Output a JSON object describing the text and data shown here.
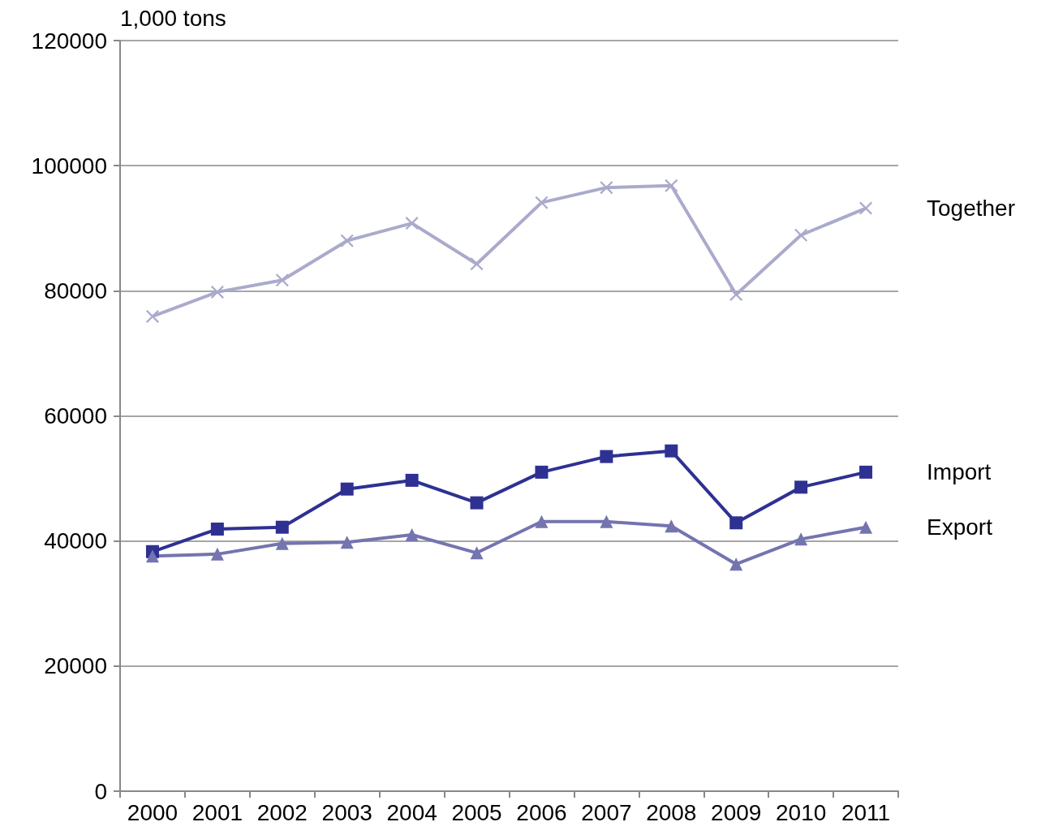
{
  "chart_data": {
    "type": "line",
    "ylabel": "1,000 tons",
    "categories": [
      "2000",
      "2001",
      "2002",
      "2003",
      "2004",
      "2005",
      "2006",
      "2007",
      "2008",
      "2009",
      "2010",
      "2011"
    ],
    "series": [
      {
        "name": "Together",
        "color": "#aaaacc",
        "marker": "cross",
        "values": [
          75900,
          79800,
          81700,
          88000,
          90800,
          84300,
          94100,
          96500,
          96800,
          79400,
          88900,
          93200
        ]
      },
      {
        "name": "Import",
        "color": "#2e3192",
        "marker": "square",
        "values": [
          38300,
          41900,
          42200,
          48300,
          49700,
          46100,
          51000,
          53500,
          54400,
          42900,
          48600,
          51000
        ]
      },
      {
        "name": "Export",
        "color": "#7474b0",
        "marker": "triangle",
        "values": [
          37600,
          37900,
          39600,
          39800,
          41000,
          38100,
          43100,
          43100,
          42400,
          36300,
          40300,
          42200
        ]
      }
    ],
    "ylim": [
      0,
      120000
    ],
    "yticks": [
      0,
      20000,
      40000,
      60000,
      80000,
      100000,
      120000
    ],
    "grid": "y"
  }
}
